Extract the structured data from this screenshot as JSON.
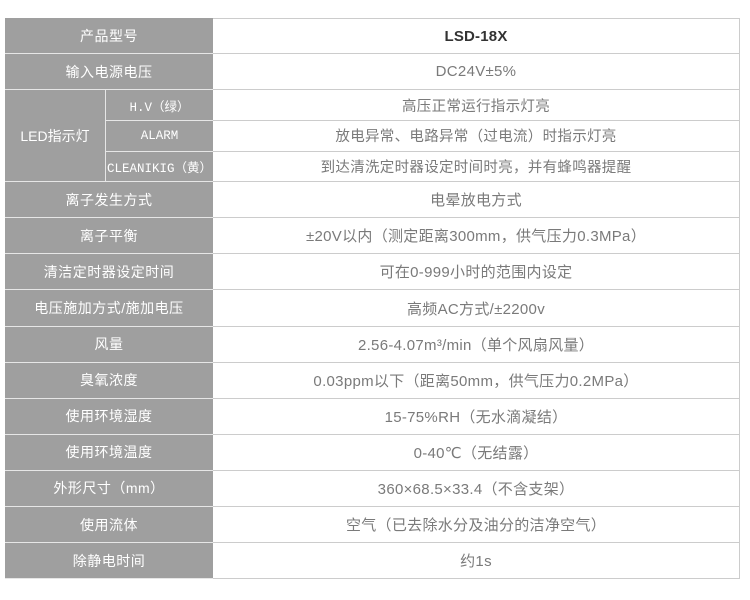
{
  "table": {
    "rows_top": [
      {
        "label": "产品型号",
        "value": "LSD-18X"
      },
      {
        "label": "输入电源电压",
        "value": "DC24V±5%"
      }
    ],
    "led_group": {
      "label": "LED指示灯",
      "items": [
        {
          "sublabel": "H.V（绿）",
          "value": "高压正常运行指示灯亮"
        },
        {
          "sublabel": "ALARM",
          "value": "放电异常、电路异常（过电流）时指示灯亮"
        },
        {
          "sublabel": "CLEANIKIG（黄）",
          "value": "到达清洗定时器设定时间时亮，并有蜂鸣器提醒"
        }
      ]
    },
    "rows_bottom": [
      {
        "label": "离子发生方式",
        "value": "电晕放电方式"
      },
      {
        "label": "离子平衡",
        "value": "±20V以内（测定距离300mm，供气压力0.3MPa）"
      },
      {
        "label": "清洁定时器设定时间",
        "value": "可在0-999小时的范围内设定"
      },
      {
        "label": "电压施加方式/施加电压",
        "value": "高频AC方式/±2200v"
      },
      {
        "label": "风量",
        "value": "2.56-4.07m³/min（单个风扇风量）"
      },
      {
        "label": "臭氧浓度",
        "value": "0.03ppm以下（距离50mm，供气压力0.2MPa）"
      },
      {
        "label": "使用环境湿度",
        "value": "15-75%RH（无水滴凝结）"
      },
      {
        "label": "使用环境温度",
        "value": "0-40℃（无结露）"
      },
      {
        "label": "外形尺寸（mm）",
        "value": "360×68.5×33.4（不含支架）"
      },
      {
        "label": "使用流体",
        "value": "空气（已去除水分及油分的洁净空气）"
      },
      {
        "label": "除静电时间",
        "value": "约1s"
      }
    ],
    "colors": {
      "cell_bg": "#9f9f9f",
      "label_text": "#ffffff",
      "value_text": "#7a7a7a",
      "model_text": "#333333",
      "border": "#cccccc"
    }
  }
}
